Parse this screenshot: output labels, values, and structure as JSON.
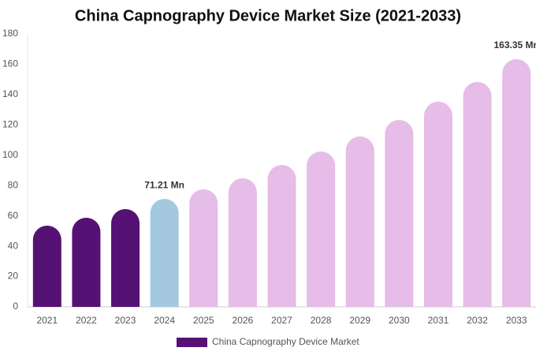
{
  "chart_data": {
    "type": "bar",
    "title": "China Capnography Device Market Size (2021-2033)",
    "categories": [
      "2021",
      "2022",
      "2023",
      "2024",
      "2025",
      "2026",
      "2027",
      "2028",
      "2029",
      "2030",
      "2031",
      "2032",
      "2033"
    ],
    "series": [
      {
        "name": "China Capnography Device Market",
        "color": "#561175",
        "values": [
          53.6,
          58.8,
          64.5,
          71.21,
          77.5,
          84.8,
          93.6,
          102.5,
          112.4,
          123.3,
          135.3,
          148.3,
          163.35
        ],
        "value_labels": [
          null,
          null,
          null,
          "71.21 Mn",
          null,
          null,
          null,
          null,
          null,
          null,
          null,
          null,
          "163.35 Mn"
        ],
        "colors": [
          "#561175",
          "#561175",
          "#561175",
          "#a4c9de",
          "#e6bce8",
          "#e6bce8",
          "#e6bce8",
          "#e6bce8",
          "#e6bce8",
          "#e6bce8",
          "#e6bce8",
          "#e6bce8",
          "#e6bce8"
        ]
      }
    ],
    "ylim": [
      0,
      180
    ],
    "yticks": [
      0,
      20,
      40,
      60,
      80,
      100,
      120,
      140,
      160,
      180
    ],
    "grid": false,
    "legend": "bottom"
  }
}
